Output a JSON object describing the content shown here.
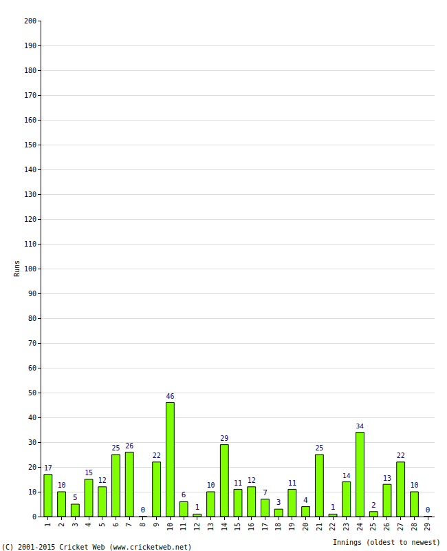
{
  "chart_data": {
    "type": "bar",
    "y_label": "Runs",
    "x_label": "Innings (oldest to newest)",
    "annotations": [
      "(C) 2001-2015 Cricket Web (www.cricketweb.net)"
    ],
    "categories": [
      "1",
      "2",
      "3",
      "4",
      "5",
      "6",
      "7",
      "8",
      "9",
      "10",
      "11",
      "12",
      "13",
      "14",
      "15",
      "16",
      "17",
      "18",
      "19",
      "20",
      "21",
      "22",
      "23",
      "24",
      "25",
      "26",
      "27",
      "28",
      "29"
    ],
    "values": [
      17,
      10,
      5,
      15,
      12,
      25,
      26,
      0,
      22,
      46,
      6,
      1,
      10,
      29,
      11,
      12,
      7,
      3,
      11,
      4,
      25,
      1,
      14,
      34,
      2,
      13,
      22,
      10,
      0
    ],
    "color": "#80ff00",
    "ylim": [
      0,
      200
    ],
    "yticks": [
      0,
      10,
      20,
      30,
      40,
      50,
      60,
      70,
      80,
      90,
      100,
      110,
      120,
      130,
      140,
      150,
      160,
      170,
      180,
      190,
      200
    ],
    "grid": true,
    "data_labels": true
  }
}
